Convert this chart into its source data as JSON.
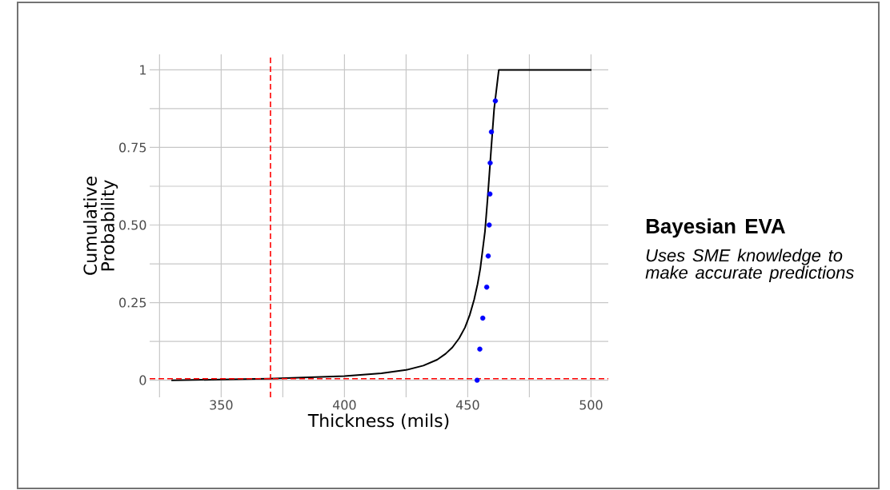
{
  "chart_data": {
    "type": "line",
    "xlabel": "Thickness (mils)",
    "ylabel": "Cumulative Probability",
    "annotations": [
      "Bayesian EVA",
      "Uses SME knowledge to make accurate predictions"
    ],
    "xlim": [
      321,
      507
    ],
    "ylim": [
      -0.055,
      1.05
    ],
    "xticks": [
      {
        "value": 325,
        "label": null
      },
      350,
      {
        "value": 375,
        "label": null
      },
      400,
      {
        "value": 425,
        "label": null
      },
      450,
      {
        "value": 475,
        "label": null
      },
      500
    ],
    "yticks": [
      0,
      {
        "value": 0.125,
        "label": null
      },
      0.25,
      {
        "value": 0.375,
        "label": null
      },
      {
        "value": 0.5,
        "label": "0.50"
      },
      {
        "value": 0.625,
        "label": null
      },
      0.75,
      {
        "value": 0.875,
        "label": null
      },
      1
    ],
    "grid": true,
    "series": [
      {
        "color": "#000000",
        "x": [
          329.8,
          350,
          369.3,
          400,
          415,
          425,
          432,
          437.6,
          441,
          443.8,
          446.5,
          448.9,
          450.8,
          452.6,
          454,
          455.1,
          457,
          458.2,
          459.5,
          460.7,
          462.6,
          500.2
        ],
        "values": [
          0,
          0.002,
          0.005,
          0.013,
          0.022,
          0.033,
          0.047,
          0.066,
          0.085,
          0.106,
          0.135,
          0.17,
          0.21,
          0.26,
          0.31,
          0.36,
          0.48,
          0.6,
          0.745,
          0.874,
          1,
          1
        ]
      },
      {
        "type": "scatter",
        "color": "#0000ff",
        "marker": "circle",
        "x": [
          453.8,
          454.9,
          456.1,
          457.7,
          458.3,
          458.7,
          459.0,
          459.1,
          459.6,
          461.2
        ],
        "values": [
          0,
          0.1,
          0.2,
          0.3,
          0.4,
          0.5,
          0.6,
          0.7,
          0.8,
          0.9
        ]
      }
    ],
    "ref_lines": [
      {
        "axis": "x",
        "value": 370,
        "color": "#ff0000",
        "line_style": "dashed"
      },
      {
        "axis": "y",
        "value": 0.005,
        "color": "#ff0000",
        "line_style": "dashed"
      }
    ]
  }
}
